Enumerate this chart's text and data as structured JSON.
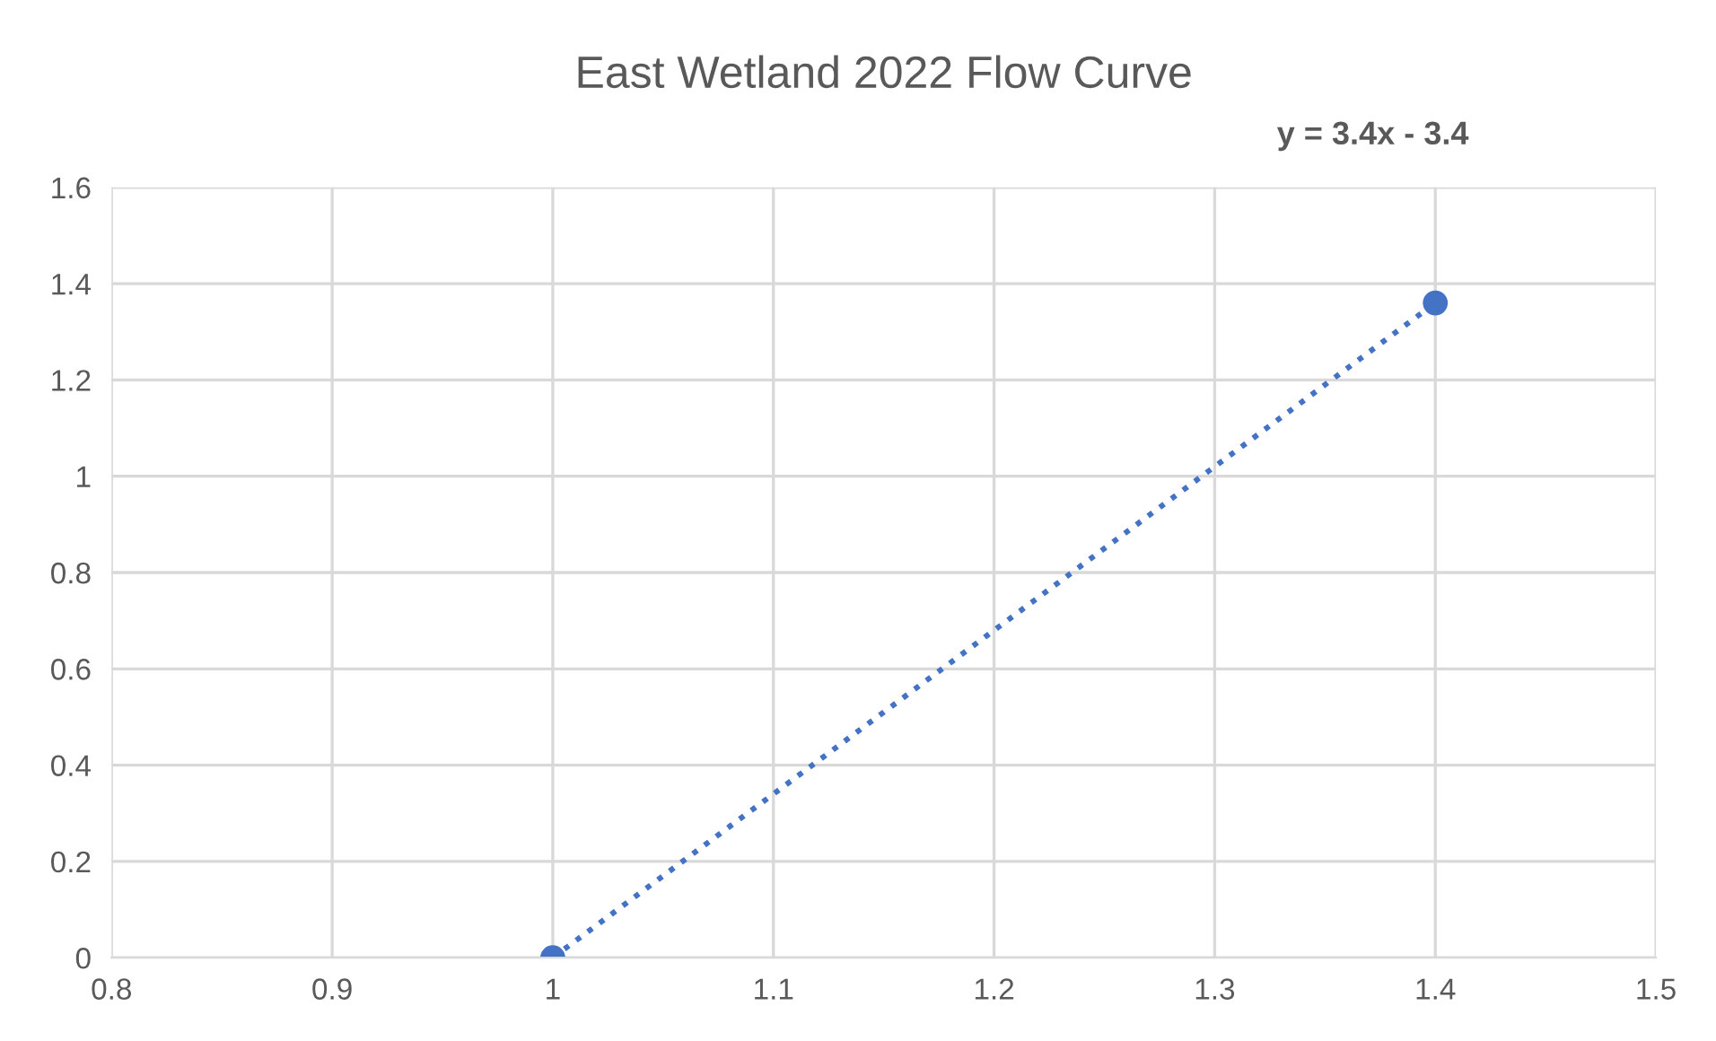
{
  "chart_data": {
    "type": "line",
    "title": "East Wetland 2022 Flow Curve",
    "series": [
      {
        "color": "#4472c4",
        "x": [
          1,
          1.4
        ],
        "values": [
          0,
          1.36
        ]
      }
    ],
    "annotations": [
      "y = 3.4x - 3.4"
    ],
    "xlim": [
      0.8,
      1.5
    ],
    "xticks": [
      0.8,
      0.9,
      1,
      1.1,
      1.2,
      1.3,
      1.4,
      1.5
    ],
    "ylim": [
      0,
      1.6
    ],
    "yticks": [
      0,
      0.2,
      0.4,
      0.6,
      0.8,
      1,
      1.2,
      1.4,
      1.6
    ],
    "grid": true,
    "marker": "circle",
    "line_style": "dotted"
  }
}
